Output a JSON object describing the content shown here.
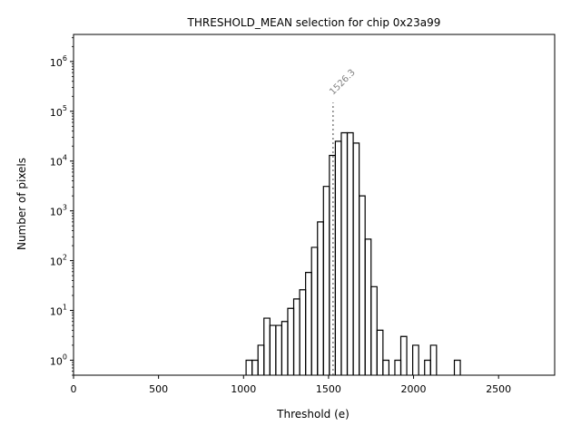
{
  "chart_data": {
    "type": "histogram",
    "title": "THRESHOLD_MEAN selection for chip 0x23a99",
    "xlabel": "Threshold (e)",
    "ylabel": "Number of pixels",
    "xlim": [
      0,
      2830
    ],
    "ylim": [
      0.5,
      3500000
    ],
    "yscale": "log",
    "x_ticks": [
      0,
      500,
      1000,
      1500,
      2000,
      2500
    ],
    "x_tick_labels": [
      "0",
      "500",
      "1000",
      "1500",
      "2000",
      "2500"
    ],
    "y_ticks": [
      1,
      10,
      100,
      1000,
      10000,
      100000,
      1000000
    ],
    "y_tick_base": "10",
    "y_tick_exponents": [
      "0",
      "1",
      "2",
      "3",
      "4",
      "5",
      "6"
    ],
    "bin_width": 35,
    "bins": [
      {
        "x0": 1015,
        "count": 1
      },
      {
        "x0": 1050,
        "count": 1
      },
      {
        "x0": 1085,
        "count": 2
      },
      {
        "x0": 1120,
        "count": 7
      },
      {
        "x0": 1155,
        "count": 5
      },
      {
        "x0": 1190,
        "count": 5
      },
      {
        "x0": 1225,
        "count": 6
      },
      {
        "x0": 1260,
        "count": 11
      },
      {
        "x0": 1295,
        "count": 17
      },
      {
        "x0": 1330,
        "count": 26
      },
      {
        "x0": 1365,
        "count": 58
      },
      {
        "x0": 1400,
        "count": 185
      },
      {
        "x0": 1435,
        "count": 600
      },
      {
        "x0": 1470,
        "count": 3100
      },
      {
        "x0": 1505,
        "count": 13000
      },
      {
        "x0": 1540,
        "count": 25000
      },
      {
        "x0": 1575,
        "count": 37000
      },
      {
        "x0": 1610,
        "count": 37000
      },
      {
        "x0": 1645,
        "count": 23000
      },
      {
        "x0": 1680,
        "count": 2000
      },
      {
        "x0": 1715,
        "count": 270
      },
      {
        "x0": 1750,
        "count": 30
      },
      {
        "x0": 1785,
        "count": 4
      },
      {
        "x0": 1820,
        "count": 1
      },
      {
        "x0": 1855,
        "count": 0
      },
      {
        "x0": 1890,
        "count": 1
      },
      {
        "x0": 1925,
        "count": 3
      },
      {
        "x0": 1960,
        "count": 0
      },
      {
        "x0": 1995,
        "count": 2
      },
      {
        "x0": 2030,
        "count": 0
      },
      {
        "x0": 2065,
        "count": 1
      },
      {
        "x0": 2100,
        "count": 2
      },
      {
        "x0": 2135,
        "count": 0
      },
      {
        "x0": 2170,
        "count": 0
      },
      {
        "x0": 2205,
        "count": 0
      },
      {
        "x0": 2240,
        "count": 1
      }
    ],
    "vline": {
      "x": 1526.3,
      "label": "1526.3",
      "color": "#808080",
      "ymax": 150000
    }
  }
}
